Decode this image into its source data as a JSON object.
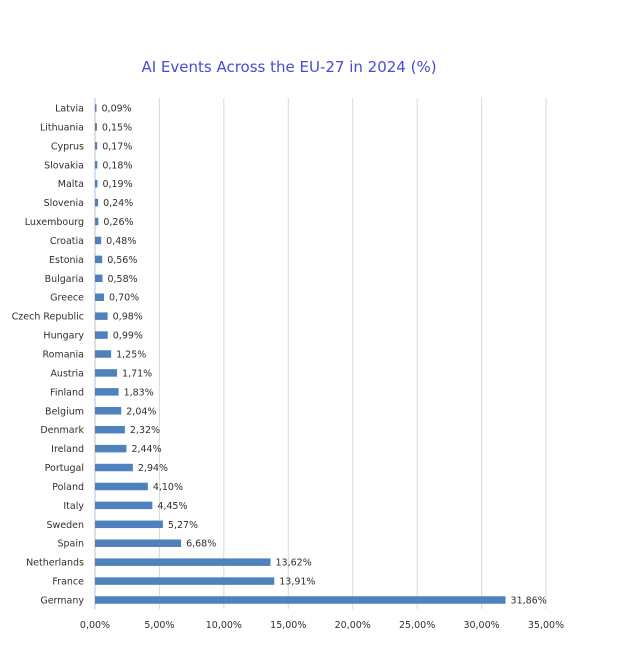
{
  "chart_data": {
    "type": "bar",
    "orientation": "horizontal",
    "title": "AI Events Across the EU-27 in 2024 (%)",
    "xlabel": "",
    "ylabel": "",
    "xlim": [
      0,
      35
    ],
    "x_ticks": [
      0,
      5,
      10,
      15,
      20,
      25,
      30,
      35
    ],
    "x_tick_labels": [
      "0,00%",
      "5,00%",
      "10,00%",
      "15,00%",
      "20,00%",
      "25,00%",
      "30,00%",
      "35,00%"
    ],
    "grid": true,
    "legend": "none",
    "bar_color": "#4f81bd",
    "categories": [
      "Latvia",
      "Lithuania",
      "Cyprus",
      "Slovakia",
      "Malta",
      "Slovenia",
      "Luxembourg",
      "Croatia",
      "Estonia",
      "Bulgaria",
      "Greece",
      "Czech Republic",
      "Hungary",
      "Romania",
      "Austria",
      "Finland",
      "Belgium",
      "Denmark",
      "Ireland",
      "Portugal",
      "Poland",
      "Italy",
      "Sweden",
      "Spain",
      "Netherlands",
      "France",
      "Germany"
    ],
    "values": [
      0.09,
      0.15,
      0.17,
      0.18,
      0.19,
      0.24,
      0.26,
      0.48,
      0.56,
      0.58,
      0.7,
      0.98,
      0.99,
      1.25,
      1.71,
      1.83,
      2.04,
      2.32,
      2.44,
      2.94,
      4.1,
      4.45,
      5.27,
      6.68,
      13.62,
      13.91,
      31.86
    ],
    "value_labels": [
      "0,09%",
      "0,15%",
      "0,17%",
      "0,18%",
      "0,19%",
      "0,24%",
      "0,26%",
      "0,48%",
      "0,56%",
      "0,58%",
      "0,70%",
      "0,98%",
      "0,99%",
      "1,25%",
      "1,71%",
      "1,83%",
      "2,04%",
      "2,32%",
      "2,44%",
      "2,94%",
      "4,10%",
      "4,45%",
      "5,27%",
      "6,68%",
      "13,62%",
      "13,91%",
      "31,86%"
    ]
  }
}
